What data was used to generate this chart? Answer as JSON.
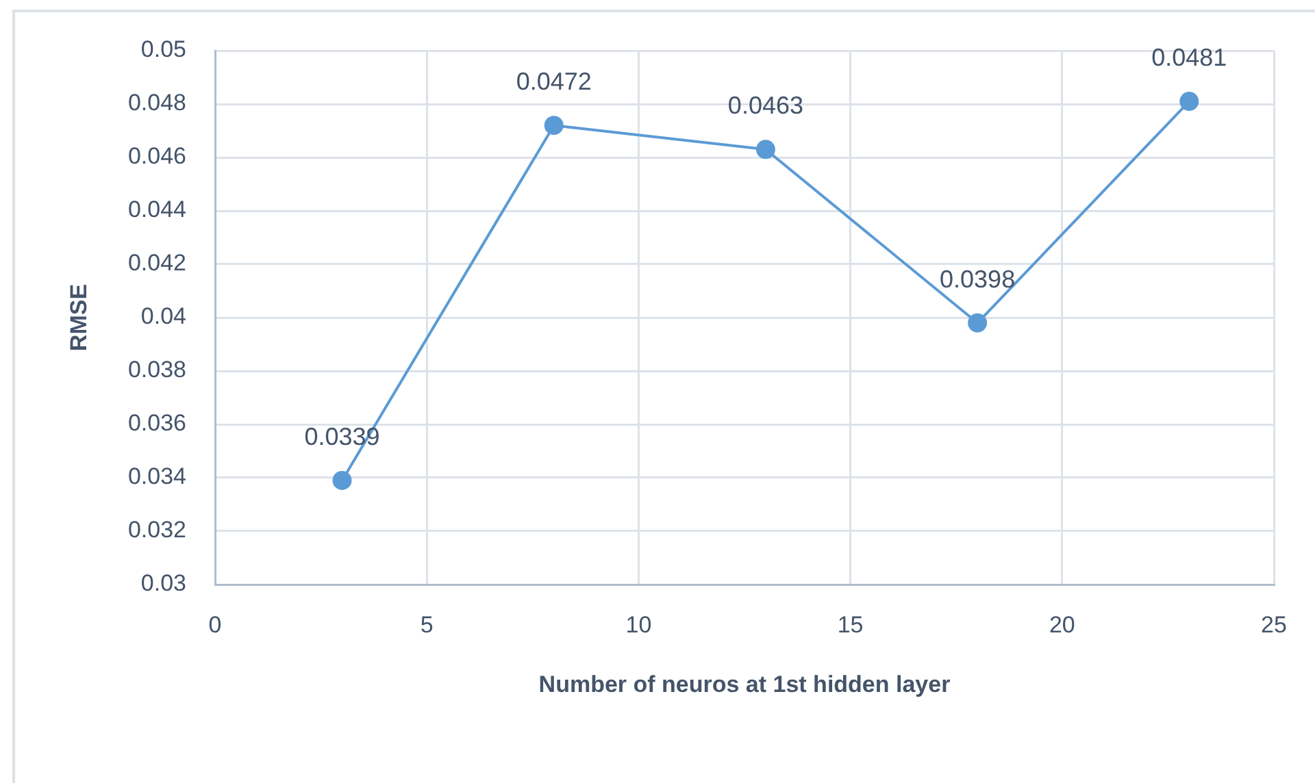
{
  "chart_data": {
    "type": "line",
    "xlabel": "Number of neuros at 1st hidden layer",
    "ylabel": "RMSE",
    "x": [
      3,
      8,
      13,
      18,
      23
    ],
    "series": [
      {
        "color": "#5b9bd5",
        "values": [
          0.0339,
          0.0472,
          0.0463,
          0.0398,
          0.0481
        ]
      }
    ],
    "xlim": [
      0,
      25
    ],
    "xticks": [
      0,
      5,
      10,
      15,
      20,
      25
    ],
    "ylim": [
      0.03,
      0.05
    ],
    "yticks": [
      0.03,
      0.032,
      0.034,
      0.036,
      0.038,
      0.04,
      0.042,
      0.044,
      0.046,
      0.048,
      0.05
    ],
    "grid": true,
    "legend": false,
    "marker": "circle",
    "line_style": "solid",
    "data_labels": true
  }
}
